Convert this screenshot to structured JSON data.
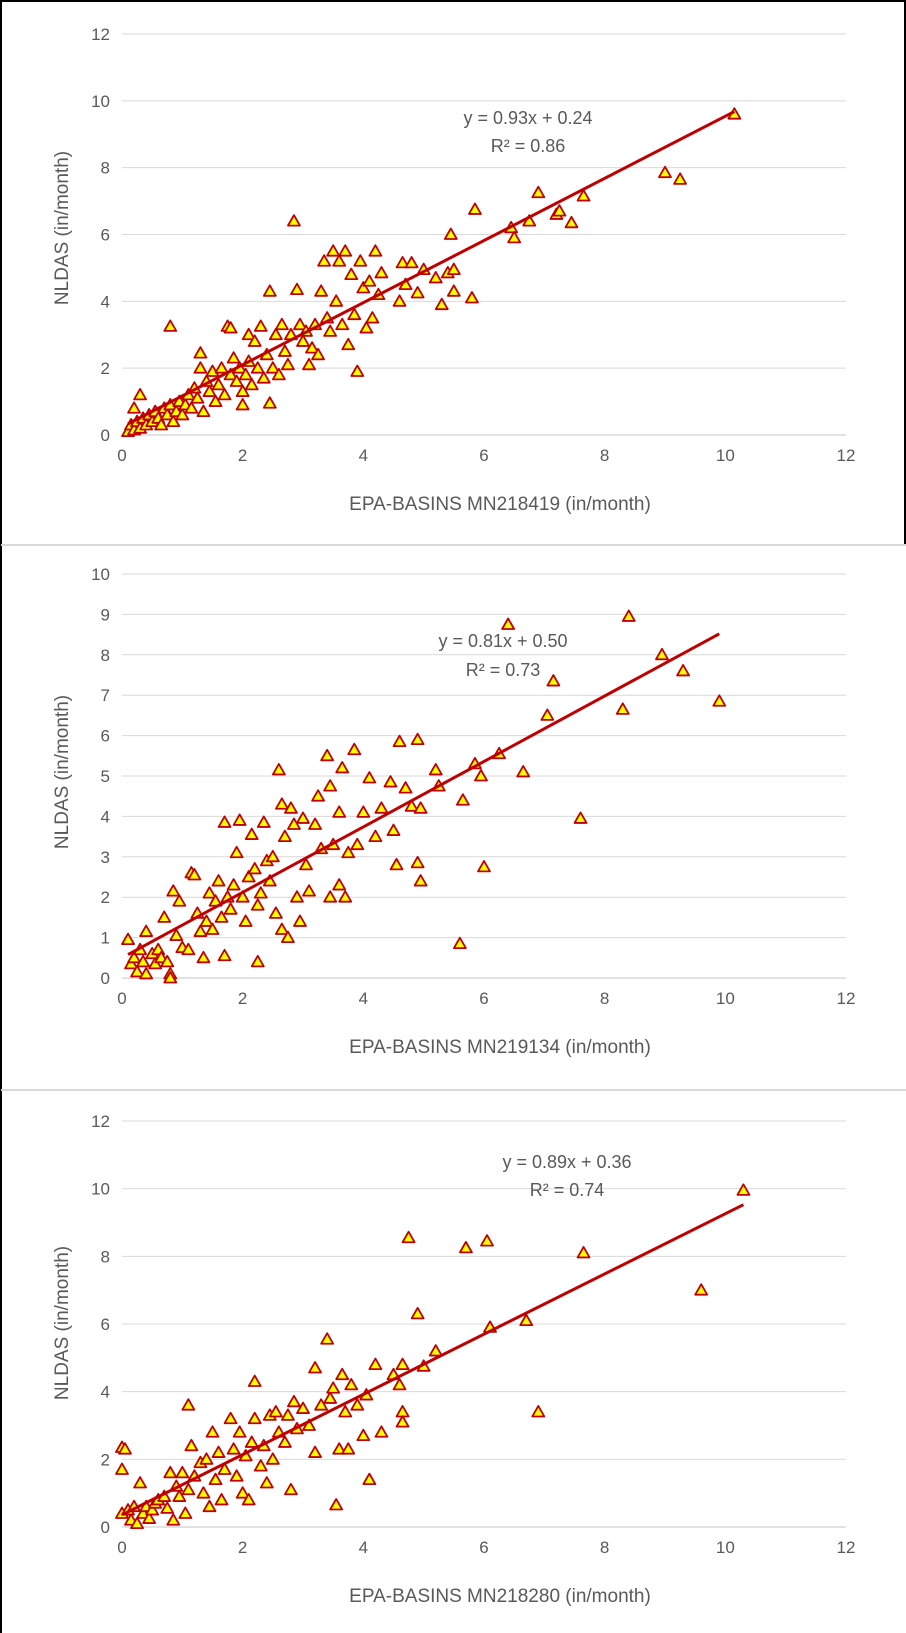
{
  "chart_data": [
    {
      "type": "scatter",
      "xlabel": "EPA-BASINS MN218419 (in/month)",
      "ylabel": "NLDAS (in/month)",
      "xlim": [
        0,
        12
      ],
      "ylim": [
        0,
        12
      ],
      "xticks": [
        0,
        2,
        4,
        6,
        8,
        10,
        12
      ],
      "yticks": [
        0,
        2,
        4,
        6,
        8,
        10,
        12
      ],
      "xtick_labels": [
        "0",
        "2",
        "4",
        "6",
        "8",
        "10",
        "12"
      ],
      "ytick_labels": [
        "0",
        "2",
        "4",
        "6",
        "8",
        "10",
        "12"
      ],
      "grid": "horizontal",
      "marker": {
        "shape": "triangle",
        "fill": "#FFFF00",
        "stroke": "#C00000"
      },
      "trendline": {
        "slope": 0.93,
        "intercept": 0.24,
        "x_range": [
          0.1,
          10.15
        ],
        "color": "#C00000"
      },
      "equation": "y = 0.93x + 0.24",
      "r2": "R² = 0.86",
      "points": [
        [
          0.1,
          0.1
        ],
        [
          0.15,
          0.3
        ],
        [
          0.2,
          0.15
        ],
        [
          0.2,
          0.8
        ],
        [
          0.25,
          0.4
        ],
        [
          0.3,
          1.2
        ],
        [
          0.3,
          0.2
        ],
        [
          0.35,
          0.5
        ],
        [
          0.4,
          0.3
        ],
        [
          0.45,
          0.6
        ],
        [
          0.5,
          0.4
        ],
        [
          0.55,
          0.7
        ],
        [
          0.6,
          0.5
        ],
        [
          0.65,
          0.3
        ],
        [
          0.7,
          0.8
        ],
        [
          0.75,
          0.6
        ],
        [
          0.8,
          0.9
        ],
        [
          0.8,
          3.25
        ],
        [
          0.85,
          0.4
        ],
        [
          0.9,
          0.7
        ],
        [
          0.95,
          1.0
        ],
        [
          1.0,
          0.6
        ],
        [
          1.05,
          0.9
        ],
        [
          1.1,
          1.2
        ],
        [
          1.15,
          0.8
        ],
        [
          1.2,
          1.4
        ],
        [
          1.25,
          1.1
        ],
        [
          1.3,
          2.0
        ],
        [
          1.3,
          2.45
        ],
        [
          1.35,
          0.7
        ],
        [
          1.4,
          1.6
        ],
        [
          1.45,
          1.3
        ],
        [
          1.5,
          1.9
        ],
        [
          1.55,
          1.0
        ],
        [
          1.6,
          1.5
        ],
        [
          1.65,
          2.0
        ],
        [
          1.7,
          1.2
        ],
        [
          1.75,
          3.25
        ],
        [
          1.8,
          3.2
        ],
        [
          1.8,
          1.8
        ],
        [
          1.85,
          2.3
        ],
        [
          1.9,
          1.6
        ],
        [
          1.95,
          2.0
        ],
        [
          2.0,
          1.3
        ],
        [
          2.0,
          0.9
        ],
        [
          2.05,
          1.8
        ],
        [
          2.1,
          2.2
        ],
        [
          2.1,
          3.0
        ],
        [
          2.15,
          1.5
        ],
        [
          2.2,
          2.8
        ],
        [
          2.25,
          2.0
        ],
        [
          2.3,
          3.25
        ],
        [
          2.35,
          1.7
        ],
        [
          2.4,
          2.4
        ],
        [
          2.45,
          4.3
        ],
        [
          2.45,
          0.95
        ],
        [
          2.5,
          2.0
        ],
        [
          2.55,
          3.0
        ],
        [
          2.6,
          1.8
        ],
        [
          2.65,
          3.3
        ],
        [
          2.7,
          2.5
        ],
        [
          2.75,
          2.1
        ],
        [
          2.8,
          3.0
        ],
        [
          2.85,
          6.4
        ],
        [
          2.9,
          4.35
        ],
        [
          2.95,
          3.3
        ],
        [
          3.0,
          2.8
        ],
        [
          3.05,
          3.1
        ],
        [
          3.1,
          2.1
        ],
        [
          3.15,
          2.6
        ],
        [
          3.2,
          3.3
        ],
        [
          3.25,
          2.4
        ],
        [
          3.3,
          4.3
        ],
        [
          3.35,
          5.2
        ],
        [
          3.4,
          3.5
        ],
        [
          3.45,
          3.1
        ],
        [
          3.5,
          5.5
        ],
        [
          3.55,
          4.0
        ],
        [
          3.6,
          5.2
        ],
        [
          3.65,
          3.3
        ],
        [
          3.7,
          5.5
        ],
        [
          3.75,
          2.7
        ],
        [
          3.8,
          4.8
        ],
        [
          3.85,
          3.6
        ],
        [
          3.9,
          1.9
        ],
        [
          3.95,
          5.2
        ],
        [
          4.0,
          4.4
        ],
        [
          4.05,
          3.2
        ],
        [
          4.1,
          4.6
        ],
        [
          4.15,
          3.5
        ],
        [
          4.2,
          5.5
        ],
        [
          4.25,
          4.2
        ],
        [
          4.3,
          4.85
        ],
        [
          4.6,
          4.0
        ],
        [
          4.65,
          5.15
        ],
        [
          4.7,
          4.5
        ],
        [
          4.8,
          5.15
        ],
        [
          4.9,
          4.25
        ],
        [
          5.0,
          4.95
        ],
        [
          5.2,
          4.7
        ],
        [
          5.3,
          3.9
        ],
        [
          5.4,
          4.85
        ],
        [
          5.45,
          6.0
        ],
        [
          5.5,
          4.95
        ],
        [
          5.5,
          4.3
        ],
        [
          5.8,
          4.1
        ],
        [
          5.85,
          6.75
        ],
        [
          6.45,
          6.2
        ],
        [
          6.5,
          5.9
        ],
        [
          6.75,
          6.4
        ],
        [
          6.9,
          7.25
        ],
        [
          7.2,
          6.6
        ],
        [
          7.25,
          6.7
        ],
        [
          7.45,
          6.35
        ],
        [
          7.65,
          7.15
        ],
        [
          9.0,
          7.85
        ],
        [
          9.25,
          7.65
        ],
        [
          10.15,
          9.6
        ]
      ]
    },
    {
      "type": "scatter",
      "xlabel": "EPA-BASINS MN219134 (in/month)",
      "ylabel": "NLDAS (in/month)",
      "xlim": [
        0,
        12
      ],
      "ylim": [
        0,
        10
      ],
      "xticks": [
        0,
        2,
        4,
        6,
        8,
        10,
        12
      ],
      "yticks": [
        0,
        1,
        2,
        3,
        4,
        5,
        6,
        7,
        8,
        9,
        10
      ],
      "xtick_labels": [
        "0",
        "2",
        "4",
        "6",
        "8",
        "10",
        "12"
      ],
      "ytick_labels": [
        "0",
        "1",
        "2",
        "3",
        "4",
        "5",
        "6",
        "7",
        "8",
        "9",
        "10"
      ],
      "grid": "horizontal",
      "marker": {
        "shape": "triangle",
        "fill": "#FFFF00",
        "stroke": "#C00000"
      },
      "trendline": {
        "slope": 0.81,
        "intercept": 0.5,
        "x_range": [
          0.1,
          9.9
        ],
        "color": "#C00000"
      },
      "equation": "y = 0.81x + 0.50",
      "r2": "R² = 0.73",
      "points": [
        [
          0.1,
          0.95
        ],
        [
          0.15,
          0.35
        ],
        [
          0.2,
          0.5
        ],
        [
          0.25,
          0.15
        ],
        [
          0.3,
          0.7
        ],
        [
          0.35,
          0.4
        ],
        [
          0.4,
          1.15
        ],
        [
          0.4,
          0.1
        ],
        [
          0.5,
          0.6
        ],
        [
          0.55,
          0.35
        ],
        [
          0.6,
          0.7
        ],
        [
          0.65,
          0.5
        ],
        [
          0.7,
          1.5
        ],
        [
          0.75,
          0.4
        ],
        [
          0.8,
          0.1
        ],
        [
          0.8,
          0.0
        ],
        [
          0.85,
          2.15
        ],
        [
          0.9,
          1.05
        ],
        [
          0.95,
          1.9
        ],
        [
          1.0,
          0.75
        ],
        [
          1.1,
          0.7
        ],
        [
          1.15,
          2.6
        ],
        [
          1.2,
          2.55
        ],
        [
          1.25,
          1.6
        ],
        [
          1.3,
          1.15
        ],
        [
          1.35,
          0.5
        ],
        [
          1.4,
          1.4
        ],
        [
          1.45,
          2.1
        ],
        [
          1.5,
          1.2
        ],
        [
          1.55,
          1.9
        ],
        [
          1.6,
          2.4
        ],
        [
          1.65,
          1.5
        ],
        [
          1.7,
          3.85
        ],
        [
          1.7,
          0.55
        ],
        [
          1.75,
          2.0
        ],
        [
          1.8,
          1.7
        ],
        [
          1.85,
          2.3
        ],
        [
          1.9,
          3.1
        ],
        [
          1.95,
          3.9
        ],
        [
          2.0,
          2.0
        ],
        [
          2.05,
          1.4
        ],
        [
          2.1,
          2.5
        ],
        [
          2.15,
          3.55
        ],
        [
          2.2,
          2.7
        ],
        [
          2.25,
          1.8
        ],
        [
          2.25,
          0.4
        ],
        [
          2.3,
          2.1
        ],
        [
          2.35,
          3.85
        ],
        [
          2.4,
          2.9
        ],
        [
          2.45,
          2.4
        ],
        [
          2.5,
          3.0
        ],
        [
          2.55,
          1.6
        ],
        [
          2.6,
          5.15
        ],
        [
          2.65,
          4.3
        ],
        [
          2.65,
          1.2
        ],
        [
          2.7,
          3.5
        ],
        [
          2.75,
          1.0
        ],
        [
          2.8,
          4.2
        ],
        [
          2.85,
          3.8
        ],
        [
          2.9,
          2.0
        ],
        [
          2.95,
          1.4
        ],
        [
          3.0,
          3.95
        ],
        [
          3.05,
          2.8
        ],
        [
          3.1,
          2.15
        ],
        [
          3.2,
          3.8
        ],
        [
          3.25,
          4.5
        ],
        [
          3.3,
          3.2
        ],
        [
          3.4,
          5.5
        ],
        [
          3.45,
          4.75
        ],
        [
          3.45,
          2.0
        ],
        [
          3.5,
          3.3
        ],
        [
          3.6,
          4.1
        ],
        [
          3.6,
          2.3
        ],
        [
          3.65,
          5.2
        ],
        [
          3.7,
          2.0
        ],
        [
          3.75,
          3.1
        ],
        [
          3.85,
          5.65
        ],
        [
          3.9,
          3.3
        ],
        [
          4.0,
          4.1
        ],
        [
          4.1,
          4.95
        ],
        [
          4.2,
          3.5
        ],
        [
          4.3,
          4.2
        ],
        [
          4.45,
          4.85
        ],
        [
          4.5,
          3.65
        ],
        [
          4.55,
          2.8
        ],
        [
          4.6,
          5.85
        ],
        [
          4.7,
          4.7
        ],
        [
          4.8,
          4.25
        ],
        [
          4.9,
          5.9
        ],
        [
          4.9,
          2.85
        ],
        [
          4.95,
          4.2
        ],
        [
          4.95,
          2.4
        ],
        [
          5.2,
          5.15
        ],
        [
          5.25,
          4.75
        ],
        [
          5.6,
          0.85
        ],
        [
          5.65,
          4.4
        ],
        [
          5.85,
          5.3
        ],
        [
          5.95,
          5.0
        ],
        [
          6.0,
          2.75
        ],
        [
          6.25,
          5.55
        ],
        [
          6.4,
          8.75
        ],
        [
          6.65,
          5.1
        ],
        [
          7.05,
          6.5
        ],
        [
          7.15,
          7.35
        ],
        [
          7.6,
          3.95
        ],
        [
          8.3,
          6.65
        ],
        [
          8.4,
          8.95
        ],
        [
          8.95,
          8.0
        ],
        [
          9.3,
          7.6
        ],
        [
          9.9,
          6.85
        ]
      ]
    },
    {
      "type": "scatter",
      "xlabel": "EPA-BASINS MN218280 (in/month)",
      "ylabel": "NLDAS (in/month)",
      "xlim": [
        0,
        12
      ],
      "ylim": [
        0,
        12
      ],
      "xticks": [
        0,
        2,
        4,
        6,
        8,
        10,
        12
      ],
      "yticks": [
        0,
        2,
        4,
        6,
        8,
        10,
        12
      ],
      "xtick_labels": [
        "0",
        "2",
        "4",
        "6",
        "8",
        "10",
        "12"
      ],
      "ytick_labels": [
        "0",
        "2",
        "4",
        "6",
        "8",
        "10",
        "12"
      ],
      "grid": "horizontal",
      "marker": {
        "shape": "triangle",
        "fill": "#FFFF00",
        "stroke": "#C00000"
      },
      "trendline": {
        "slope": 0.89,
        "intercept": 0.36,
        "x_range": [
          0.0,
          10.3
        ],
        "color": "#C00000"
      },
      "equation": "y = 0.89x + 0.36",
      "r2": "R² = 0.74",
      "points": [
        [
          0.0,
          2.35
        ],
        [
          0.0,
          1.7
        ],
        [
          0.0,
          0.4
        ],
        [
          0.05,
          2.3
        ],
        [
          0.1,
          0.5
        ],
        [
          0.15,
          0.2
        ],
        [
          0.2,
          0.6
        ],
        [
          0.25,
          0.1
        ],
        [
          0.3,
          1.3
        ],
        [
          0.35,
          0.4
        ],
        [
          0.4,
          0.6
        ],
        [
          0.45,
          0.25
        ],
        [
          0.5,
          0.5
        ],
        [
          0.55,
          0.7
        ],
        [
          0.6,
          0.8
        ],
        [
          0.7,
          0.9
        ],
        [
          0.75,
          0.55
        ],
        [
          0.8,
          1.6
        ],
        [
          0.85,
          0.2
        ],
        [
          0.9,
          1.2
        ],
        [
          0.95,
          0.9
        ],
        [
          1.0,
          1.6
        ],
        [
          1.05,
          0.4
        ],
        [
          1.1,
          3.6
        ],
        [
          1.1,
          1.1
        ],
        [
          1.15,
          2.4
        ],
        [
          1.2,
          1.5
        ],
        [
          1.3,
          1.9
        ],
        [
          1.35,
          1.0
        ],
        [
          1.4,
          2.0
        ],
        [
          1.45,
          0.6
        ],
        [
          1.5,
          2.8
        ],
        [
          1.55,
          1.4
        ],
        [
          1.6,
          2.2
        ],
        [
          1.65,
          0.8
        ],
        [
          1.7,
          1.7
        ],
        [
          1.8,
          3.2
        ],
        [
          1.85,
          2.3
        ],
        [
          1.9,
          1.5
        ],
        [
          1.95,
          2.8
        ],
        [
          2.0,
          1.0
        ],
        [
          2.05,
          2.1
        ],
        [
          2.1,
          0.8
        ],
        [
          2.15,
          2.5
        ],
        [
          2.2,
          4.3
        ],
        [
          2.2,
          3.2
        ],
        [
          2.3,
          1.8
        ],
        [
          2.35,
          2.4
        ],
        [
          2.4,
          1.3
        ],
        [
          2.45,
          3.3
        ],
        [
          2.5,
          2.0
        ],
        [
          2.55,
          3.4
        ],
        [
          2.6,
          2.8
        ],
        [
          2.7,
          2.5
        ],
        [
          2.75,
          3.3
        ],
        [
          2.8,
          1.1
        ],
        [
          2.85,
          3.7
        ],
        [
          2.9,
          2.9
        ],
        [
          3.0,
          3.5
        ],
        [
          3.1,
          3.0
        ],
        [
          3.2,
          4.7
        ],
        [
          3.2,
          2.2
        ],
        [
          3.3,
          3.6
        ],
        [
          3.4,
          5.55
        ],
        [
          3.45,
          3.8
        ],
        [
          3.5,
          4.1
        ],
        [
          3.55,
          0.65
        ],
        [
          3.6,
          2.3
        ],
        [
          3.65,
          4.5
        ],
        [
          3.7,
          3.4
        ],
        [
          3.75,
          2.3
        ],
        [
          3.8,
          4.2
        ],
        [
          3.9,
          3.6
        ],
        [
          4.0,
          2.7
        ],
        [
          4.05,
          3.9
        ],
        [
          4.1,
          1.4
        ],
        [
          4.2,
          4.8
        ],
        [
          4.3,
          2.8
        ],
        [
          4.5,
          4.5
        ],
        [
          4.6,
          4.2
        ],
        [
          4.65,
          4.8
        ],
        [
          4.65,
          3.4
        ],
        [
          4.65,
          3.1
        ],
        [
          4.75,
          8.55
        ],
        [
          4.9,
          6.3
        ],
        [
          5.0,
          4.75
        ],
        [
          5.2,
          5.2
        ],
        [
          5.7,
          8.25
        ],
        [
          6.05,
          8.45
        ],
        [
          6.1,
          5.9
        ],
        [
          6.7,
          6.1
        ],
        [
          6.9,
          3.4
        ],
        [
          7.65,
          8.1
        ],
        [
          9.6,
          7.0
        ],
        [
          10.3,
          9.95
        ]
      ]
    }
  ]
}
